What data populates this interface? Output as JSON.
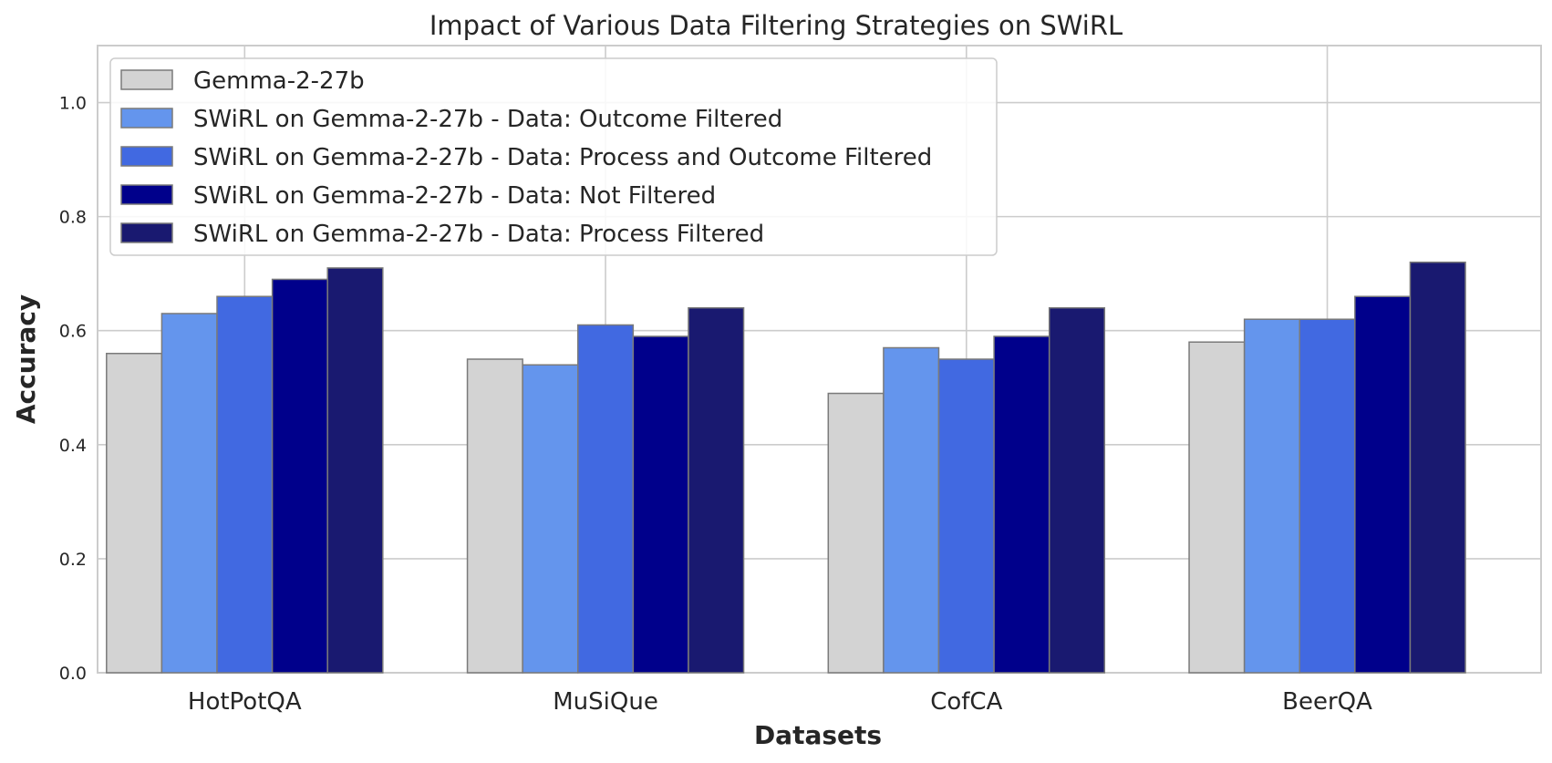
{
  "chart_data": {
    "type": "bar",
    "title": "Impact of Various Data Filtering Strategies on SWiRL",
    "xlabel": "Datasets",
    "ylabel": "Accuracy",
    "ylim": [
      0,
      1.1
    ],
    "yticks": [
      "0.0",
      "0.2",
      "0.4",
      "0.6",
      "0.8",
      "1.0"
    ],
    "grid": true,
    "legend_position": "top-left",
    "categories": [
      "HotPotQA",
      "MuSiQue",
      "CofCA",
      "BeerQA"
    ],
    "series": [
      {
        "name": "Gemma-2-27b",
        "color": "#d3d3d3",
        "values": [
          0.56,
          0.55,
          0.49,
          0.58
        ]
      },
      {
        "name": "SWiRL on Gemma-2-27b - Data: Outcome Filtered",
        "color": "#6495ed",
        "values": [
          0.63,
          0.54,
          0.57,
          0.62
        ]
      },
      {
        "name": "SWiRL on Gemma-2-27b - Data: Process and Outcome Filtered",
        "color": "#4169e1",
        "values": [
          0.66,
          0.61,
          0.55,
          0.62
        ]
      },
      {
        "name": "SWiRL on Gemma-2-27b - Data: Not Filtered",
        "color": "#00008b",
        "values": [
          0.69,
          0.59,
          0.59,
          0.66
        ]
      },
      {
        "name": "SWiRL on Gemma-2-27b - Data: Process Filtered",
        "color": "#191970",
        "values": [
          0.71,
          0.64,
          0.64,
          0.72
        ]
      }
    ]
  }
}
